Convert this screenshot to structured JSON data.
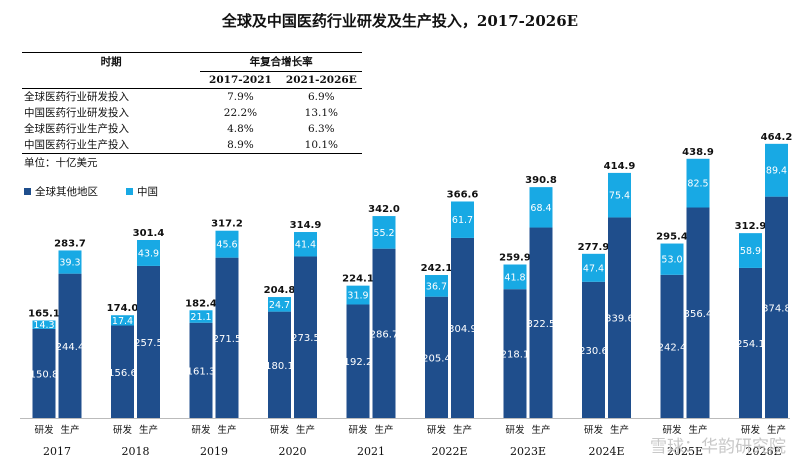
{
  "title": "全球及中国医药行业研发及生产投入，2017-2026E",
  "table": {
    "period_label": "时期",
    "cagr_label": "年复合增长率",
    "columns": [
      "2017-2021",
      "2021-2026E"
    ],
    "rows": [
      {
        "label": "全球医药行业研发投入",
        "values": [
          "7.9%",
          "6.9%"
        ]
      },
      {
        "label": "中国医药行业研发投入",
        "values": [
          "22.2%",
          "13.1%"
        ]
      },
      {
        "label": "全球医药行业生产投入",
        "values": [
          "4.8%",
          "6.3%"
        ]
      },
      {
        "label": "中国医药行业生产投入",
        "values": [
          "8.9%",
          "10.1%"
        ]
      }
    ]
  },
  "unit": "单位：十亿美元",
  "watermark": "雪球：华韵研究院",
  "colors": {
    "rest_of_world": "#1f4e8c",
    "china": "#18a9e4"
  },
  "chart_data": {
    "type": "bar",
    "stacked": true,
    "categories": [
      "2017",
      "2018",
      "2019",
      "2020",
      "2021",
      "2022E",
      "2023E",
      "2024E",
      "2025E",
      "2026E"
    ],
    "bar_labels": [
      "研发",
      "生产"
    ],
    "legend": [
      "全球其他地区",
      "中国"
    ],
    "rd": {
      "rest_of_world": [
        150.8,
        156.6,
        161.3,
        180.1,
        192.2,
        205.4,
        218.1,
        230.6,
        242.4,
        254.1
      ],
      "china": [
        14.3,
        17.4,
        21.1,
        24.7,
        31.9,
        36.7,
        41.8,
        47.4,
        53.0,
        58.9
      ],
      "total": [
        165.1,
        174.0,
        182.4,
        204.8,
        224.1,
        242.1,
        259.9,
        277.9,
        295.4,
        312.9
      ]
    },
    "production": {
      "rest_of_world": [
        244.4,
        257.5,
        271.5,
        273.5,
        286.7,
        304.9,
        322.5,
        339.6,
        356.4,
        374.8
      ],
      "china": [
        39.3,
        43.9,
        45.6,
        41.4,
        55.2,
        61.7,
        68.4,
        75.4,
        82.5,
        89.4
      ],
      "total": [
        283.7,
        301.4,
        317.2,
        314.9,
        342.0,
        366.6,
        390.8,
        414.9,
        438.9,
        464.2
      ]
    }
  }
}
